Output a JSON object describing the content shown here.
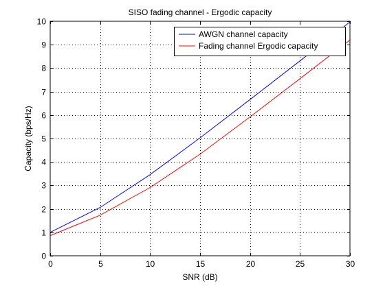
{
  "chart_data": {
    "type": "line",
    "title": "SISO fading channel - Ergodic capacity",
    "xlabel": "SNR (dB)",
    "ylabel": "Capacity (bps/Hz)",
    "xlim": [
      0,
      30
    ],
    "ylim": [
      0,
      10
    ],
    "xticks": [
      0,
      5,
      10,
      15,
      20,
      25,
      30
    ],
    "yticks": [
      0,
      1,
      2,
      3,
      4,
      5,
      6,
      7,
      8,
      9,
      10
    ],
    "grid": true,
    "legend_position": "top-right",
    "x": [
      0,
      5,
      10,
      15,
      20,
      25,
      30
    ],
    "series": [
      {
        "name": "AWGN channel capacity",
        "color": "#0000ff",
        "values": [
          1.0,
          2.06,
          3.46,
          5.03,
          6.66,
          8.31,
          9.97
        ]
      },
      {
        "name": "Fading channel Ergodic capacity",
        "color": "#ff0000",
        "values": [
          0.86,
          1.73,
          2.91,
          4.33,
          5.92,
          7.55,
          9.2
        ]
      }
    ]
  }
}
